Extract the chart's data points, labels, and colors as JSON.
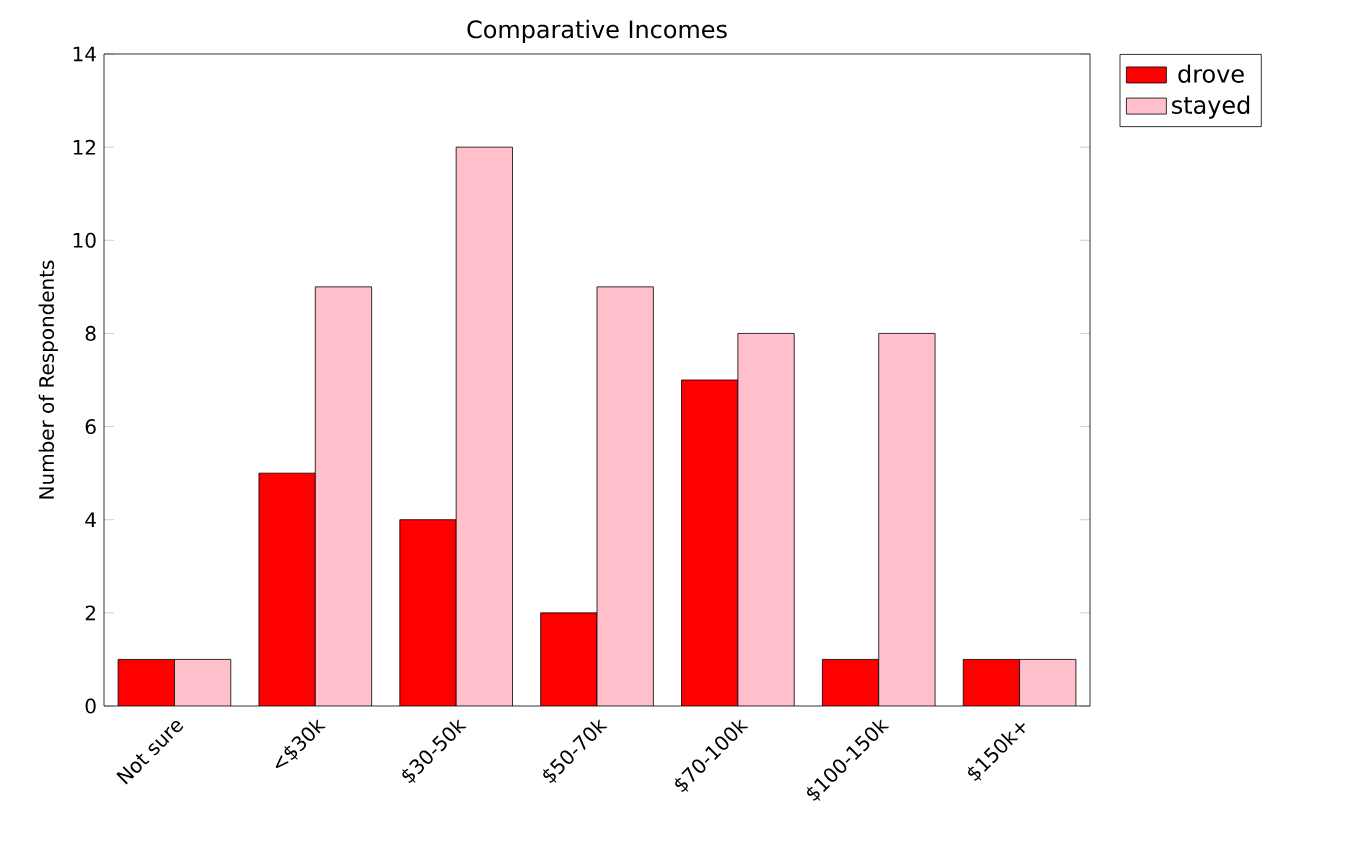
{
  "chart_data": {
    "type": "bar",
    "title": "Comparative Incomes",
    "ylabel": "Number of Respondents",
    "categories": [
      "Not sure",
      "<$30k",
      "$30-50k",
      "$50-70k",
      "$70-100k",
      "$100-150k",
      "$150k+"
    ],
    "series": [
      {
        "name": "drove",
        "color": "#ff0000",
        "values": [
          1,
          5,
          4,
          2,
          7,
          1,
          1
        ]
      },
      {
        "name": "stayed",
        "color": "#ffc0cb",
        "values": [
          1,
          9,
          12,
          9,
          8,
          8,
          1
        ]
      }
    ],
    "ylim": [
      0,
      14
    ],
    "yticks": [
      0,
      2,
      4,
      6,
      8,
      10,
      12,
      14
    ],
    "legend": "top right",
    "grid": false
  }
}
